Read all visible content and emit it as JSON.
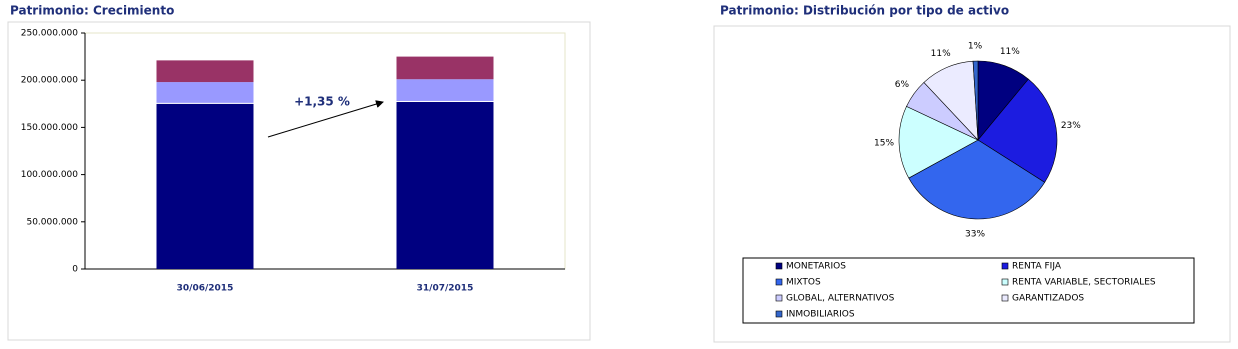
{
  "chart_data": [
    {
      "type": "stacked_bar",
      "title": "Patrimonio: Crecimiento",
      "categories": [
        "30/06/2015",
        "31/07/2015"
      ],
      "series": [
        {
          "color": "#000080",
          "values": [
            175000000,
            177000000
          ]
        },
        {
          "color": "#ffffff",
          "values": [
            1000000,
            1000000
          ]
        },
        {
          "color": "#9999ff",
          "values": [
            22000000,
            23000000
          ]
        },
        {
          "color": "#993366",
          "values": [
            23000000,
            24000000
          ]
        }
      ],
      "ylim": [
        0,
        250000000
      ],
      "yticks": [
        0,
        {
          "value": 50000000,
          "label": "50.000.000"
        },
        {
          "value": 100000000,
          "label": "100.000.000"
        },
        {
          "value": 150000000,
          "label": "150.000.000"
        },
        {
          "value": 200000000,
          "label": "200.000.000"
        },
        {
          "value": 250000000,
          "label": "250.000.000"
        }
      ],
      "grid": false,
      "annotation": "+1,35 %"
    },
    {
      "type": "pie",
      "title": "Patrimonio: Distribución por tipo de activo",
      "categories": [
        "MONETARIOS",
        "RENTA FIJA",
        "MIXTOS",
        "RENTA VARIABLE, SECTORIALES",
        "GLOBAL, ALTERNATIVOS",
        "GARANTIZADOS",
        "INMOBILIARIOS"
      ],
      "values": [
        11,
        23,
        33,
        15,
        6,
        11,
        1
      ],
      "value_labels": [
        "11%",
        "23%",
        "33%",
        "15%",
        "6%",
        "11%",
        "1%"
      ],
      "colors": [
        "#000080",
        "#1c1ce0",
        "#3366ee",
        "#ccffff",
        "#ccccff",
        "#ebebff",
        "#3366cc"
      ],
      "legend": "bottom"
    }
  ]
}
